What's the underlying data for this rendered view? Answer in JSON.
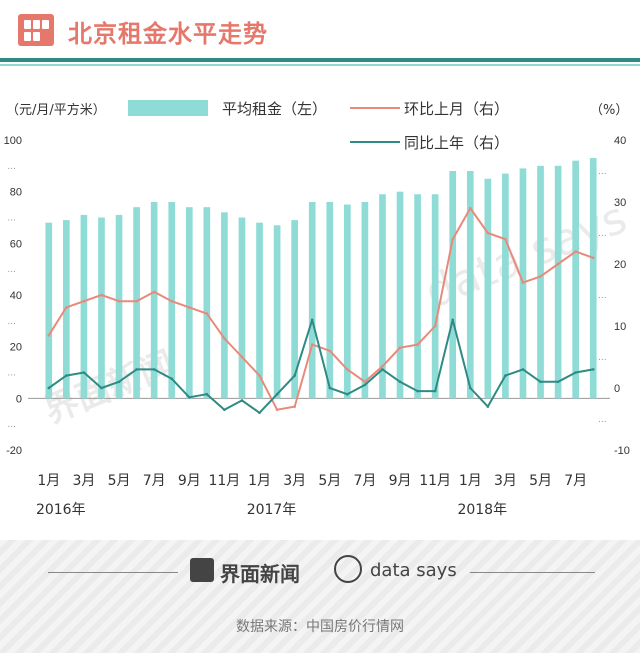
{
  "header": {
    "title": "北京租金水平走势",
    "logo_icon": "building-icon"
  },
  "footer": {
    "brand_cn": "界面新闻",
    "brand_en": "data says",
    "source": "数据来源：中国房价行情网"
  },
  "chart_data": {
    "type": "bar",
    "title": "",
    "left_unit": "（元/月/平方米）",
    "right_unit": "（%）",
    "legend": [
      "平均租金（左）",
      "环比上月（右）",
      "同比上年（右）"
    ],
    "left_ylim": [
      -20,
      100
    ],
    "left_ticks": [
      -20,
      0,
      20,
      40,
      60,
      80,
      100
    ],
    "right_ylim": [
      -10,
      40
    ],
    "right_ticks": [
      -10,
      0,
      10,
      20,
      30,
      40
    ],
    "x_tick_labels": [
      "1月",
      "3月",
      "5月",
      "7月",
      "9月",
      "11月",
      "1月",
      "3月",
      "5月",
      "7月",
      "9月",
      "11月",
      "1月",
      "3月",
      "5月",
      "7月"
    ],
    "year_labels": [
      "2016年",
      "2017年",
      "2018年"
    ],
    "months": [
      "2016-01",
      "2016-02",
      "2016-03",
      "2016-04",
      "2016-05",
      "2016-06",
      "2016-07",
      "2016-08",
      "2016-09",
      "2016-10",
      "2016-11",
      "2016-12",
      "2017-01",
      "2017-02",
      "2017-03",
      "2017-04",
      "2017-05",
      "2017-06",
      "2017-07",
      "2017-08",
      "2017-09",
      "2017-10",
      "2017-11",
      "2017-12",
      "2018-01",
      "2018-02",
      "2018-03",
      "2018-04",
      "2018-05",
      "2018-06",
      "2018-07",
      "2018-08"
    ],
    "series": [
      {
        "name": "平均租金（左）",
        "type": "bar",
        "axis": "left",
        "color": "#8fdcd6",
        "values": [
          68,
          69,
          71,
          70,
          71,
          74,
          76,
          76,
          74,
          74,
          72,
          70,
          68,
          67,
          69,
          76,
          76,
          75,
          76,
          79,
          80,
          79,
          79,
          88,
          88,
          85,
          87,
          89,
          90,
          90,
          92,
          93
        ]
      },
      {
        "name": "环比上月（右）",
        "type": "line",
        "axis": "right",
        "color": "#e88a7b",
        "values": [
          8.5,
          13,
          14,
          15,
          14,
          14,
          15.5,
          14,
          13,
          12,
          8,
          5,
          2,
          -3.5,
          -3,
          7,
          6,
          3,
          1,
          3.5,
          6.5,
          7,
          10,
          24,
          29,
          25,
          24,
          17,
          18,
          20,
          22,
          21
        ]
      },
      {
        "name": "同比上年（右）",
        "type": "line",
        "axis": "right",
        "color": "#2e8b84",
        "values": [
          0,
          2,
          2.5,
          0,
          1,
          3,
          3,
          1.5,
          -1.5,
          -1,
          -3.5,
          -2,
          -4,
          -1,
          2,
          11,
          0,
          -1,
          0.5,
          3,
          1,
          -0.5,
          -0.5,
          11,
          0,
          -3,
          2,
          3,
          1,
          1,
          2.5,
          3
        ]
      }
    ]
  }
}
